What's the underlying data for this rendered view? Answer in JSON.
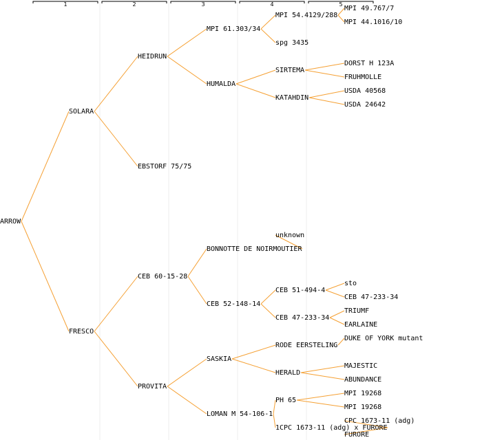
{
  "generations": [
    "1",
    "2",
    "3",
    "4",
    "5"
  ],
  "colors": {
    "edge": "#f5a033",
    "text": "#000000",
    "separator": "#ececec"
  },
  "nodes": [
    {
      "id": "n0",
      "label": "ARROW"
    },
    {
      "id": "n1",
      "label": "SOLARA"
    },
    {
      "id": "n2",
      "label": "FRESCO"
    },
    {
      "id": "n3",
      "label": "HEIDRUN"
    },
    {
      "id": "n4",
      "label": "EBSTORF 75/75"
    },
    {
      "id": "n5",
      "label": "CEB 60-15-28"
    },
    {
      "id": "n6",
      "label": "PROVITA"
    },
    {
      "id": "n7",
      "label": "MPI 61.303/34"
    },
    {
      "id": "n8",
      "label": "HUMALDA"
    },
    {
      "id": "n9",
      "label": "BONNOTTE DE NOIRMOUTIER"
    },
    {
      "id": "n10",
      "label": "CEB 52-148-14"
    },
    {
      "id": "n11",
      "label": "SASKIA"
    },
    {
      "id": "n12",
      "label": "LOMAN M 54-106-1"
    },
    {
      "id": "n13",
      "label": "MPI 54.4129/288"
    },
    {
      "id": "n14",
      "label": "spg 3435"
    },
    {
      "id": "n15",
      "label": "SIRTEMA"
    },
    {
      "id": "n16",
      "label": "KATAHDIN"
    },
    {
      "id": "n17",
      "label": "unknown"
    },
    {
      "id": "n18",
      "label": "CEB 51-494-4"
    },
    {
      "id": "n19",
      "label": "CEB 47-233-34"
    },
    {
      "id": "n20",
      "label": "RODE EERSTELING"
    },
    {
      "id": "n21",
      "label": "HERALD"
    },
    {
      "id": "n22",
      "label": "PH 65"
    },
    {
      "id": "n23",
      "label": "1CPC 1673-11 (adg) x FURORE"
    },
    {
      "id": "n24",
      "label": "MPI 49.767/7"
    },
    {
      "id": "n25",
      "label": "MPI 44.1016/10"
    },
    {
      "id": "n26",
      "label": "DORST H 123A"
    },
    {
      "id": "n27",
      "label": "FRUHMOLLE"
    },
    {
      "id": "n28",
      "label": "USDA 40568"
    },
    {
      "id": "n29",
      "label": "USDA 24642"
    },
    {
      "id": "n30",
      "label": "sto"
    },
    {
      "id": "n31",
      "label": "CEB 47-233-34"
    },
    {
      "id": "n32",
      "label": "TRIUMF"
    },
    {
      "id": "n33",
      "label": "EARLAINE"
    },
    {
      "id": "n34",
      "label": "DUKE OF YORK mutant"
    },
    {
      "id": "n35",
      "label": "MAJESTIC"
    },
    {
      "id": "n36",
      "label": "ABUNDANCE"
    },
    {
      "id": "n37",
      "label": "MPI 19268"
    },
    {
      "id": "n38",
      "label": "MPI 19268"
    },
    {
      "id": "n39",
      "label": "CPC 1673-11 (adg)"
    },
    {
      "id": "n40",
      "label": "FURORE"
    }
  ],
  "edges": [
    [
      "n0",
      "n1"
    ],
    [
      "n0",
      "n2"
    ],
    [
      "n1",
      "n3"
    ],
    [
      "n1",
      "n4"
    ],
    [
      "n2",
      "n5"
    ],
    [
      "n2",
      "n6"
    ],
    [
      "n3",
      "n7"
    ],
    [
      "n3",
      "n8"
    ],
    [
      "n5",
      "n9"
    ],
    [
      "n5",
      "n10"
    ],
    [
      "n6",
      "n11"
    ],
    [
      "n6",
      "n12"
    ],
    [
      "n7",
      "n13"
    ],
    [
      "n7",
      "n14"
    ],
    [
      "n8",
      "n15"
    ],
    [
      "n8",
      "n16"
    ],
    [
      "n9",
      "n17"
    ],
    [
      "n10",
      "n18"
    ],
    [
      "n10",
      "n19"
    ],
    [
      "n11",
      "n20"
    ],
    [
      "n11",
      "n21"
    ],
    [
      "n12",
      "n22"
    ],
    [
      "n12",
      "n23"
    ],
    [
      "n13",
      "n24"
    ],
    [
      "n13",
      "n25"
    ],
    [
      "n15",
      "n26"
    ],
    [
      "n15",
      "n27"
    ],
    [
      "n16",
      "n28"
    ],
    [
      "n16",
      "n29"
    ],
    [
      "n18",
      "n30"
    ],
    [
      "n18",
      "n31"
    ],
    [
      "n19",
      "n32"
    ],
    [
      "n19",
      "n33"
    ],
    [
      "n20",
      "n34"
    ],
    [
      "n21",
      "n35"
    ],
    [
      "n21",
      "n36"
    ],
    [
      "n22",
      "n37"
    ],
    [
      "n22",
      "n38"
    ],
    [
      "n23",
      "n39"
    ],
    [
      "n23",
      "n40"
    ]
  ]
}
